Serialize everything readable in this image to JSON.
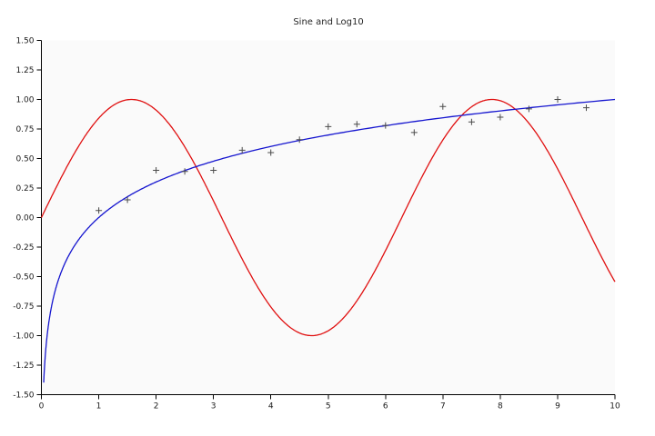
{
  "chart_data": {
    "type": "line",
    "title": "Sine and Log10",
    "grid": false,
    "legend": "none",
    "panel_background": "#fafafa",
    "axis_color": "#000000",
    "x_axis": {
      "min": 0,
      "max": 10,
      "ticks": [
        0,
        1,
        2,
        3,
        4,
        5,
        6,
        7,
        8,
        9,
        10
      ]
    },
    "y_axis": {
      "min": -1.5,
      "max": 1.5,
      "tick_step": 0.25,
      "ticks": [
        "1.50",
        "1.25",
        "1.00",
        "0.75",
        "0.50",
        "0.25",
        "0.00",
        "-0.25",
        "-0.50",
        "-0.75",
        "-1.00",
        "-1.25",
        "-1.50"
      ]
    },
    "series": [
      {
        "name": "sine",
        "label": "sin(x)",
        "type": "line",
        "color": "#e01010",
        "formula": "sin",
        "x_start": 0,
        "x_end": 10
      },
      {
        "name": "log10",
        "label": "log10(x)",
        "type": "line",
        "color": "#1515cf",
        "formula": "log10",
        "x_start": 0.04,
        "x_end": 10
      },
      {
        "name": "log10-noisy-samples",
        "label": "log10 samples",
        "type": "scatter",
        "marker": "plus",
        "color": "#4a4a4a",
        "points": [
          [
            1.0,
            0.06
          ],
          [
            1.5,
            0.15
          ],
          [
            2.0,
            0.4
          ],
          [
            2.5,
            0.39
          ],
          [
            3.0,
            0.4
          ],
          [
            3.5,
            0.57
          ],
          [
            4.0,
            0.55
          ],
          [
            4.5,
            0.66
          ],
          [
            5.0,
            0.77
          ],
          [
            5.5,
            0.79
          ],
          [
            6.0,
            0.78
          ],
          [
            6.5,
            0.72
          ],
          [
            7.0,
            0.94
          ],
          [
            7.5,
            0.81
          ],
          [
            8.0,
            0.85
          ],
          [
            8.5,
            0.92
          ],
          [
            9.0,
            1.0
          ],
          [
            9.5,
            0.93
          ]
        ]
      }
    ]
  }
}
